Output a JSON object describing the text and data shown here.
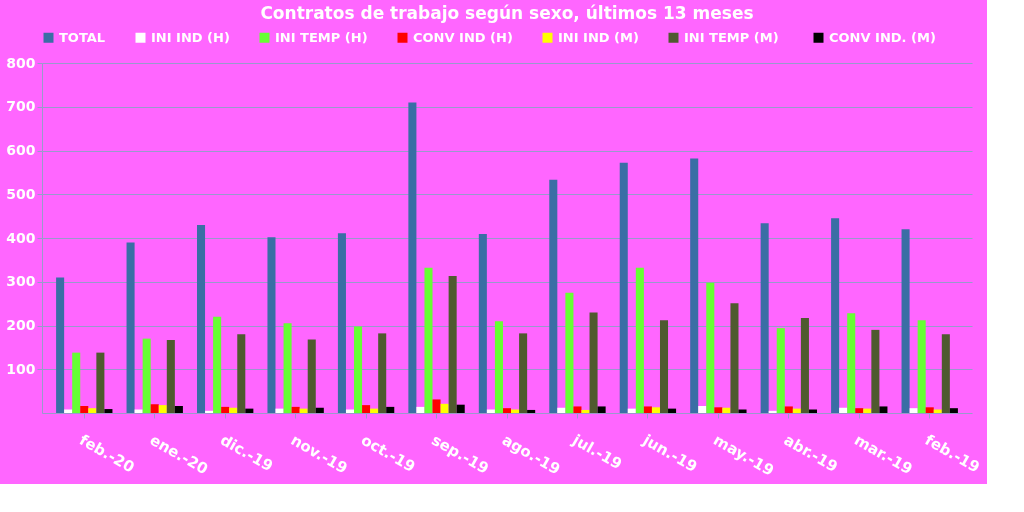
{
  "chart_data": {
    "type": "bar",
    "title": "Contratos de trabajo según sexo, últimos 13 meses",
    "categories": [
      "feb.-20",
      "ene.-20",
      "dic.-19",
      "nov.-19",
      "oct.-19",
      "sep.-19",
      "ago.-19",
      "jul.-19",
      "jun.-19",
      "may.-19",
      "abr.-19",
      "mar.-19",
      "feb.-19"
    ],
    "series": [
      {
        "name": "TOTAL",
        "color": "#3a6ea5",
        "values": [
          310,
          390,
          430,
          402,
          411,
          710,
          409,
          533,
          572,
          582,
          434,
          445,
          420
        ]
      },
      {
        "name": "INI IND (H)",
        "color": "#ffffff",
        "values": [
          8,
          8,
          5,
          10,
          8,
          14,
          8,
          12,
          10,
          16,
          5,
          12,
          11
        ]
      },
      {
        "name": "INI TEMP (H)",
        "color": "#66ff33",
        "values": [
          138,
          170,
          220,
          205,
          198,
          332,
          210,
          275,
          332,
          298,
          194,
          228,
          212
        ]
      },
      {
        "name": "CONV IND (H)",
        "color": "#ff0000",
        "values": [
          16,
          20,
          14,
          14,
          18,
          31,
          11,
          15,
          15,
          13,
          15,
          11,
          13
        ]
      },
      {
        "name": "INI IND (M)",
        "color": "#ffff00",
        "values": [
          11,
          18,
          12,
          10,
          10,
          21,
          8,
          7,
          13,
          12,
          10,
          10,
          8
        ]
      },
      {
        "name": "INI TEMP  (M)",
        "color": "#4f5a2f",
        "values": [
          138,
          167,
          180,
          168,
          182,
          313,
          182,
          230,
          212,
          251,
          217,
          190,
          180
        ]
      },
      {
        "name": "CONV IND.  (M)",
        "color": "#000000",
        "values": [
          9,
          16,
          10,
          12,
          14,
          19,
          7,
          15,
          10,
          8,
          8,
          15,
          11
        ]
      }
    ],
    "ylim": [
      0,
      800
    ],
    "yticks": [
      100,
      200,
      300,
      400,
      500,
      600,
      700,
      800
    ],
    "grid": "y",
    "legend": "top"
  }
}
